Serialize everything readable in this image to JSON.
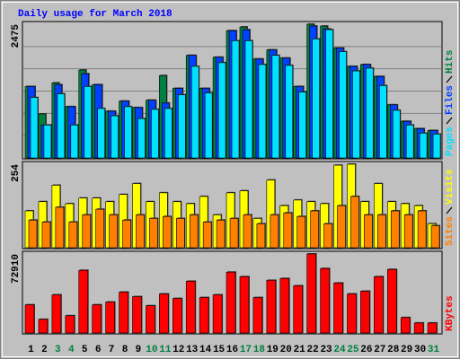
{
  "chart_data": [
    {
      "type": "bar",
      "title": "Daily usage for March 2018",
      "ylim": [
        0,
        2475
      ],
      "yticks": [
        2475
      ],
      "series": [
        {
          "name": "Hits",
          "color": "#008040",
          "values": [
            1322,
            814,
            1390,
            949,
            1627,
            1356,
            865,
            1051,
            932,
            1068,
            1525,
            1288,
            1898,
            1288,
            1864,
            2356,
            2424,
            1831,
            2000,
            1848,
            1322,
            2475,
            2441,
            2034,
            1695,
            1729,
            1508,
            983,
            678,
            542,
            508
          ]
        },
        {
          "name": "Files",
          "color": "#0040ff",
          "values": [
            1322,
            610,
            1356,
            949,
            1559,
            1356,
            865,
            1051,
            932,
            1068,
            1017,
            1288,
            1898,
            1288,
            1864,
            2356,
            2373,
            1831,
            2000,
            1848,
            1322,
            2441,
            2390,
            2034,
            1695,
            1729,
            1508,
            983,
            678,
            542,
            508
          ]
        },
        {
          "name": "Pages",
          "color": "#00e0ff",
          "values": [
            1119,
            610,
            1186,
            610,
            1322,
            915,
            780,
            949,
            729,
            899,
            915,
            1169,
            1695,
            1203,
            1763,
            2169,
            2169,
            1729,
            1898,
            1712,
            1220,
            2203,
            2373,
            1966,
            1610,
            1661,
            1339,
            881,
            610,
            458,
            441
          ]
        }
      ]
    },
    {
      "type": "bar",
      "ylim": [
        0,
        254
      ],
      "yticks": [
        254
      ],
      "series": [
        {
          "name": "Visits",
          "color": "#ffff00",
          "values": [
            112,
            140,
            190,
            134,
            151,
            151,
            140,
            162,
            195,
            140,
            167,
            140,
            134,
            156,
            100,
            167,
            173,
            89,
            206,
            128,
            145,
            140,
            134,
            251,
            254,
            140,
            195,
            140,
            134,
            128,
            73
          ]
        },
        {
          "name": "Sites",
          "color": "#ff8000",
          "values": [
            84,
            78,
            123,
            78,
            100,
            117,
            100,
            84,
            100,
            89,
            95,
            89,
            100,
            78,
            84,
            89,
            100,
            73,
            100,
            106,
            95,
            112,
            73,
            128,
            156,
            100,
            100,
            112,
            100,
            112,
            67
          ]
        }
      ]
    },
    {
      "type": "bar",
      "ylim": [
        0,
        72910
      ],
      "yticks": [
        72910
      ],
      "categories": [
        "1",
        "2",
        "3",
        "4",
        "5",
        "6",
        "7",
        "8",
        "9",
        "10",
        "11",
        "12",
        "13",
        "14",
        "15",
        "16",
        "17",
        "18",
        "19",
        "20",
        "21",
        "22",
        "23",
        "24",
        "25",
        "26",
        "27",
        "28",
        "29",
        "30",
        "31"
      ],
      "category_colors": [
        "#000000",
        "#000000",
        "#008040",
        "#008040",
        "#000000",
        "#000000",
        "#000000",
        "#000000",
        "#000000",
        "#008040",
        "#008040",
        "#000000",
        "#000000",
        "#000000",
        "#000000",
        "#000000",
        "#008040",
        "#008040",
        "#000000",
        "#000000",
        "#000000",
        "#000000",
        "#000000",
        "#008040",
        "#008040",
        "#000000",
        "#000000",
        "#000000",
        "#000000",
        "#000000",
        "#008040"
      ],
      "series": [
        {
          "name": "KBytes",
          "color": "#ff0000",
          "values": [
            25978,
            12570,
            35196,
            15922,
            57822,
            25978,
            28492,
            37710,
            33520,
            25140,
            36034,
            31844,
            47766,
            32682,
            35196,
            56146,
            51956,
            32682,
            48604,
            50280,
            43576,
            72910,
            59498,
            46090,
            36034,
            38548,
            51956,
            58660,
            14246,
            9218,
            9218
          ]
        }
      ]
    }
  ]
}
